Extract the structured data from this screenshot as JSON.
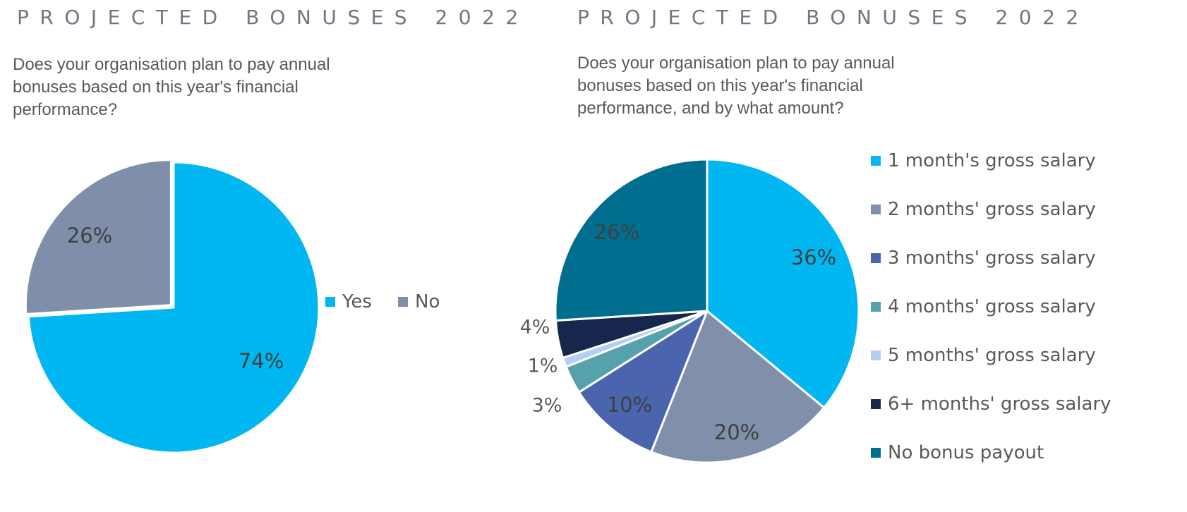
{
  "left": {
    "heading": "PROJECTED BONUSES 2022",
    "question": "Does your organisation plan to pay annual bonuses based on this year's financial performance?"
  },
  "right": {
    "heading": "PROJECTED BONUSES 2022",
    "question": "Does your organisation plan to pay annual bonuses based on this year's financial performance, and by what amount?"
  },
  "chart_data": [
    {
      "type": "pie",
      "legend": "right",
      "slices": [
        {
          "label": "Yes",
          "value": 74,
          "value_label": "74%",
          "color": "#00b7f1"
        },
        {
          "label": "No",
          "value": 26,
          "value_label": "26%",
          "color": "#7f8ea9"
        }
      ]
    },
    {
      "type": "pie",
      "legend": "right",
      "slices": [
        {
          "label": "1 month's gross salary",
          "value": 36,
          "value_label": "36%",
          "color": "#00b7f1"
        },
        {
          "label": "2 months' gross salary",
          "value": 20,
          "value_label": "20%",
          "color": "#8090aa"
        },
        {
          "label": "3 months' gross salary",
          "value": 10,
          "value_label": "10%",
          "color": "#4a64ad"
        },
        {
          "label": "4 months' gross salary",
          "value": 3,
          "value_label": "3%",
          "color": "#55a2ac"
        },
        {
          "label": "5 months' gross salary",
          "value": 1,
          "value_label": "1%",
          "color": "#b4cff3"
        },
        {
          "label": "6+ months' gross salary",
          "value": 4,
          "value_label": "4%",
          "color": "#16264d"
        },
        {
          "label": "No bonus payout",
          "value": 26,
          "value_label": "26%",
          "color": "#006f8f"
        }
      ]
    }
  ]
}
